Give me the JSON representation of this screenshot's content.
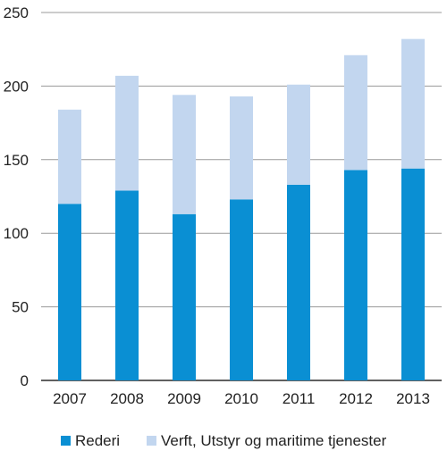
{
  "chart_data": {
    "type": "bar",
    "stacked": true,
    "categories": [
      "2007",
      "2008",
      "2009",
      "2010",
      "2011",
      "2012",
      "2013"
    ],
    "series": [
      {
        "name": "Rederi",
        "color": "#0a8fd3",
        "values": [
          120,
          129,
          113,
          123,
          133,
          143,
          144
        ]
      },
      {
        "name": "Verft, Utstyr og maritime tjenester",
        "color": "#c2d6ef",
        "values": [
          64,
          78,
          81,
          70,
          68,
          78,
          88
        ]
      }
    ],
    "ylim": [
      0,
      250
    ],
    "yticks": [
      0,
      50,
      100,
      150,
      200,
      250
    ],
    "grid": true,
    "legend_position": "bottom"
  }
}
